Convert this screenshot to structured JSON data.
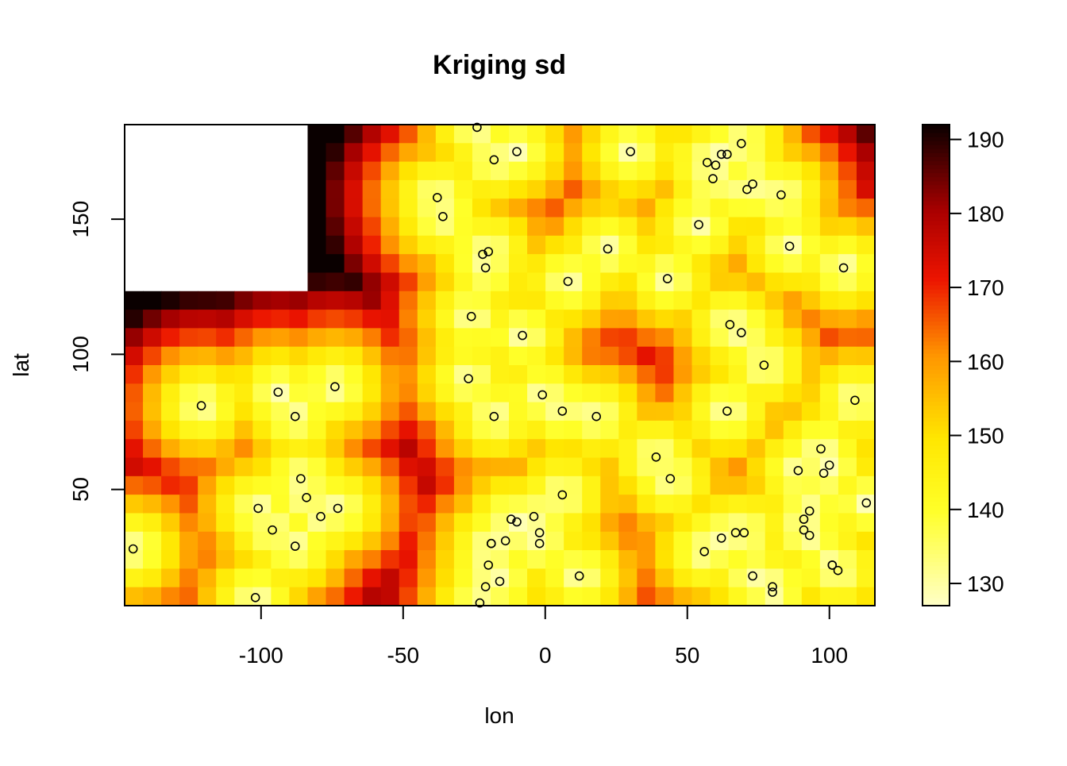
{
  "chart_data": {
    "type": "heatmap",
    "title": "Kriging sd",
    "xlabel": "lon",
    "ylabel": "lat",
    "xlim": [
      -148,
      116
    ],
    "ylim": [
      7,
      185
    ],
    "x_ticks": [
      -100,
      -50,
      0,
      50,
      100
    ],
    "x_tick_labels": [
      "-100",
      "-50",
      "0",
      "50",
      "100"
    ],
    "y_ticks": [
      50,
      100,
      150
    ],
    "y_tick_labels": [
      "50",
      "100",
      "150"
    ],
    "colorbar": {
      "range": [
        127,
        192
      ],
      "ticks": [
        130,
        140,
        150,
        160,
        170,
        180,
        190
      ],
      "tick_labels": [
        "130",
        "140",
        "150",
        "160",
        "170",
        "180",
        "190"
      ],
      "palette": "heat (white-yellow-red-black)"
    },
    "missing_region": "no estimates in upper-left corner (lon < -83, lat > 121)",
    "highs": [
      {
        "lon": 32,
        "lat": 100,
        "sd": 178
      },
      {
        "lon": -48,
        "lat": 90,
        "sd": 180
      },
      {
        "lon": -30,
        "lat": 55,
        "sd": 172
      },
      {
        "lon": 28,
        "lat": 12,
        "sd": 173
      },
      {
        "lon": 10,
        "lat": 170,
        "sd": 168
      },
      {
        "lon": 118,
        "lat": 100,
        "sd": 172
      },
      {
        "lon": 115,
        "lat": 178,
        "sd": 188
      }
    ],
    "observations": [
      [
        -145,
        28
      ],
      [
        -121,
        81
      ],
      [
        -94,
        86
      ],
      [
        -88,
        77
      ],
      [
        -86,
        54
      ],
      [
        -84,
        47
      ],
      [
        -101,
        43
      ],
      [
        -96,
        35
      ],
      [
        -88,
        29
      ],
      [
        -79,
        40
      ],
      [
        -73,
        43
      ],
      [
        -74,
        88
      ],
      [
        -102,
        10
      ],
      [
        -38,
        158
      ],
      [
        -36,
        151
      ],
      [
        -24,
        184
      ],
      [
        -18,
        172
      ],
      [
        -10,
        175
      ],
      [
        -22,
        137
      ],
      [
        -20,
        138
      ],
      [
        -21,
        132
      ],
      [
        -26,
        114
      ],
      [
        -8,
        107
      ],
      [
        -27,
        91
      ],
      [
        -18,
        77
      ],
      [
        -1,
        85
      ],
      [
        6,
        79
      ],
      [
        18,
        77
      ],
      [
        -19,
        30
      ],
      [
        -19,
        30
      ],
      [
        -14,
        31
      ],
      [
        -12,
        39
      ],
      [
        -10,
        38
      ],
      [
        -4,
        40
      ],
      [
        -2,
        34
      ],
      [
        -2,
        30
      ],
      [
        -20,
        22
      ],
      [
        -16,
        16
      ],
      [
        -21,
        14
      ],
      [
        -23,
        8
      ],
      [
        6,
        48
      ],
      [
        12,
        18
      ],
      [
        30,
        175
      ],
      [
        22,
        139
      ],
      [
        8,
        127
      ],
      [
        43,
        128
      ],
      [
        39,
        62
      ],
      [
        44,
        54
      ],
      [
        54,
        148
      ],
      [
        57,
        171
      ],
      [
        60,
        170
      ],
      [
        59,
        165
      ],
      [
        62,
        174
      ],
      [
        64,
        174
      ],
      [
        69,
        178
      ],
      [
        71,
        161
      ],
      [
        73,
        163
      ],
      [
        83,
        159
      ],
      [
        86,
        140
      ],
      [
        65,
        111
      ],
      [
        69,
        108
      ],
      [
        77,
        96
      ],
      [
        64,
        79
      ],
      [
        56,
        27
      ],
      [
        62,
        32
      ],
      [
        67,
        34
      ],
      [
        70,
        34
      ],
      [
        73,
        18
      ],
      [
        80,
        14
      ],
      [
        80,
        12
      ],
      [
        89,
        57
      ],
      [
        91,
        39
      ],
      [
        91,
        35
      ],
      [
        93,
        33
      ],
      [
        93,
        42
      ],
      [
        97,
        65
      ],
      [
        98,
        56
      ],
      [
        100,
        59
      ],
      [
        101,
        22
      ],
      [
        101,
        22
      ],
      [
        103,
        20
      ],
      [
        105,
        132
      ],
      [
        109,
        83
      ],
      [
        113,
        45
      ]
    ]
  }
}
